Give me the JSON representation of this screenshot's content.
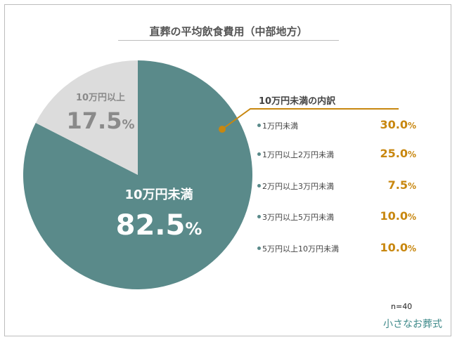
{
  "chart_data": {
    "type": "pie",
    "title": "直葬の平均飲食費用（中部地方）",
    "slices": [
      {
        "label": "10万円未満",
        "value": 82.5,
        "unit": "%",
        "color": "#5a8a8a"
      },
      {
        "label": "10万円以上",
        "value": 17.5,
        "unit": "%",
        "color": "#dcdcdc"
      }
    ],
    "breakdown": {
      "title": "10万円未満の内訳",
      "items": [
        {
          "label": "1万円未満",
          "value": "30.0",
          "unit": "%"
        },
        {
          "label": "1万円以上2万円未満",
          "value": "25.0",
          "unit": "%"
        },
        {
          "label": "2万円以上3万円未満",
          "value": "7.5",
          "unit": "%"
        },
        {
          "label": "3万円以上5万円未満",
          "value": "10.0",
          "unit": "%"
        },
        {
          "label": "5万円以上10万円未満",
          "value": "10.0",
          "unit": "%"
        }
      ],
      "accent_color": "#c8870f"
    },
    "sample_size": "n=40"
  },
  "brand": "小さなお葬式"
}
